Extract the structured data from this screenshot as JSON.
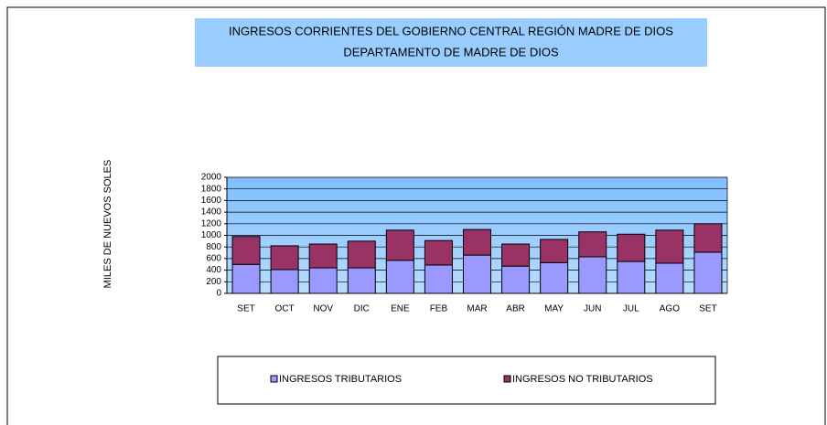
{
  "chart_data": {
    "type": "stacked_bar",
    "title": "INGRESOS CORRIENTES DEL GOBIERNO CENTRAL REGIÓN MADRE DE DIOS",
    "subtitle": "DEPARTAMENTO DE MADRE DE DIOS",
    "y_label": "MILES DE NUEVOS SOLES",
    "categories": [
      "SET",
      "OCT",
      "NOV",
      "DIC",
      "ENE",
      "FEB",
      "MAR",
      "ABR",
      "MAY",
      "JUN",
      "JUL",
      "AGO",
      "SET"
    ],
    "series": [
      {
        "name": "INGRESOS TRIBUTARIOS",
        "color": "#9999ff",
        "values": [
          500,
          410,
          440,
          440,
          570,
          490,
          660,
          470,
          530,
          630,
          550,
          520,
          710
        ]
      },
      {
        "name": "INGRESOS NO TRIBUTARIOS",
        "color": "#993366",
        "values": [
          480,
          410,
          410,
          460,
          520,
          420,
          440,
          380,
          400,
          430,
          470,
          570,
          490
        ]
      }
    ],
    "ylim": [
      0,
      2000
    ],
    "yticks": [
      0,
      200,
      400,
      600,
      800,
      1000,
      1200,
      1400,
      1600,
      1800,
      2000
    ],
    "grid": true
  }
}
